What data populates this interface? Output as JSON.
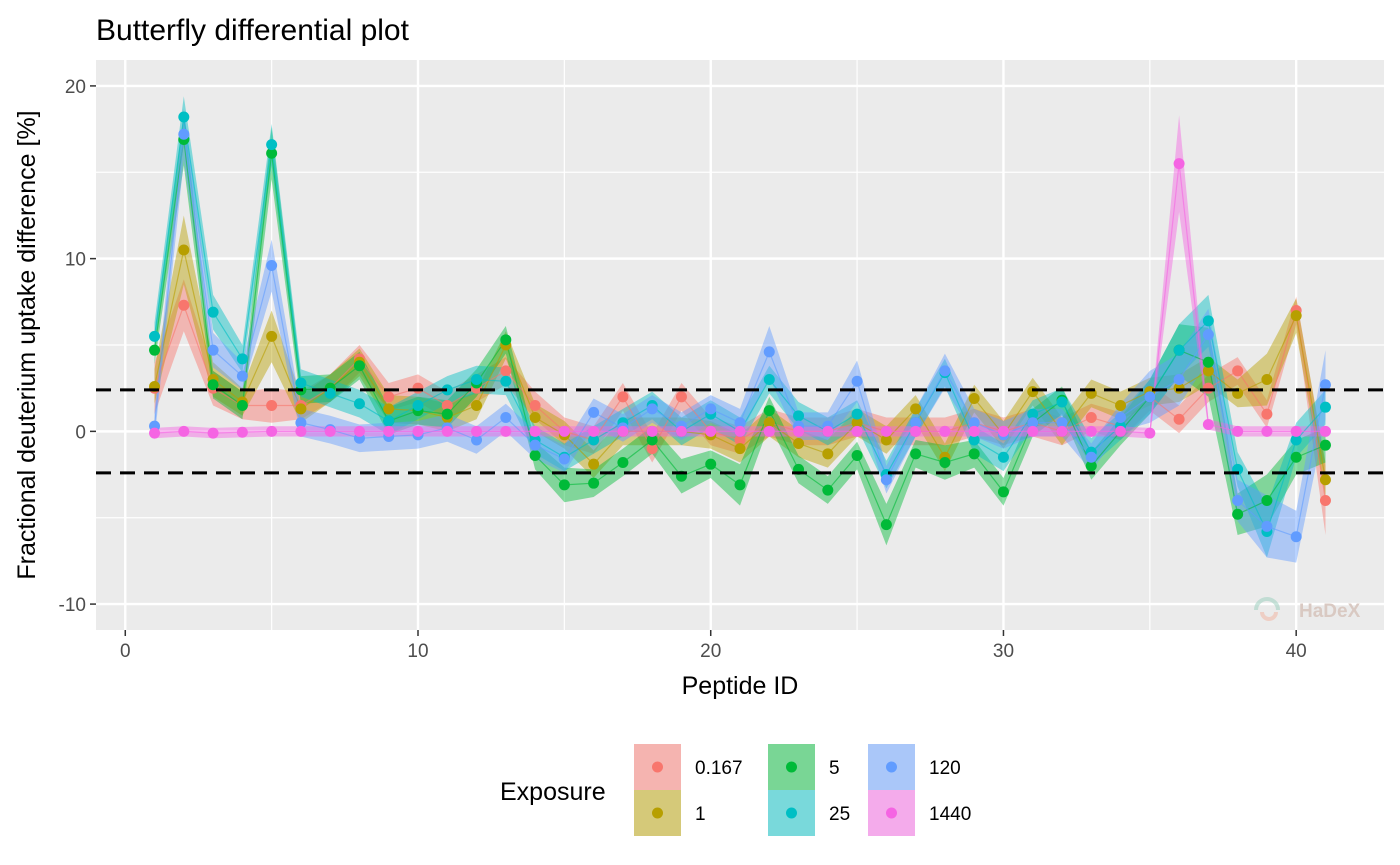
{
  "chart_data": {
    "type": "line",
    "title": "Butterfly differential plot",
    "xlabel": "Peptide ID",
    "ylabel": "Fractional deuterium uptake difference [%]",
    "xlim": [
      -1,
      43
    ],
    "ylim": [
      -11.5,
      21.5
    ],
    "x_ticks": [
      0,
      10,
      20,
      30,
      40
    ],
    "y_ticks": [
      -10,
      0,
      10,
      20
    ],
    "x_tick_labels": [
      "0",
      "10",
      "20",
      "30",
      "40"
    ],
    "y_tick_labels": [
      "-10",
      "0",
      "10",
      "20"
    ],
    "grid": true,
    "threshold_lines": [
      2.4,
      -2.4
    ],
    "legend": {
      "title": "Exposure",
      "position": "bottom"
    },
    "watermark": "HaDeX",
    "x": [
      1,
      2,
      3,
      4,
      5,
      6,
      7,
      8,
      9,
      10,
      11,
      12,
      13,
      14,
      15,
      16,
      17,
      18,
      19,
      20,
      21,
      22,
      23,
      24,
      25,
      26,
      27,
      28,
      29,
      30,
      31,
      32,
      33,
      34,
      35,
      36,
      37,
      38,
      39,
      40,
      41
    ],
    "series": [
      {
        "name": "0.167",
        "color": "#f8766d",
        "values": [
          2.5,
          7.3,
          2.5,
          1.5,
          1.5,
          1.5,
          2.5,
          4.2,
          2.0,
          2.5,
          1.5,
          2.5,
          3.5,
          1.5,
          0.0,
          -0.5,
          2.0,
          -1.0,
          2.0,
          0.0,
          -0.5,
          0.5,
          0.0,
          0.0,
          0.5,
          0.0,
          0.0,
          0.0,
          0.5,
          0.0,
          0.5,
          0.0,
          0.8,
          0.3,
          2.0,
          0.7,
          2.5,
          3.5,
          1.0,
          7.0,
          -4.0
        ],
        "error": [
          1.5,
          1.5,
          1.0,
          0.8,
          1.0,
          0.8,
          0.8,
          0.8,
          0.8,
          0.8,
          0.8,
          0.8,
          0.8,
          0.8,
          0.8,
          0.8,
          0.8,
          0.8,
          0.8,
          0.8,
          0.8,
          0.8,
          0.8,
          0.8,
          0.8,
          0.8,
          0.8,
          0.8,
          0.8,
          0.8,
          0.8,
          0.8,
          0.8,
          0.8,
          0.8,
          0.8,
          0.8,
          0.8,
          0.8,
          0.8,
          2.0
        ]
      },
      {
        "name": "1",
        "color": "#b79f00",
        "values": [
          2.6,
          10.5,
          3.0,
          1.7,
          5.5,
          1.3,
          2.5,
          4.0,
          1.3,
          1.2,
          0.8,
          1.5,
          5.0,
          0.8,
          -0.2,
          -1.9,
          0.0,
          0.0,
          0.0,
          -0.2,
          -1.0,
          0.5,
          -0.7,
          -1.3,
          0.5,
          -0.5,
          1.3,
          -1.5,
          1.9,
          -0.2,
          2.3,
          0.0,
          2.2,
          1.5,
          2.3,
          2.5,
          3.5,
          2.2,
          3.0,
          6.7,
          -2.8
        ],
        "error": [
          1.0,
          2.0,
          1.0,
          0.8,
          1.5,
          0.8,
          0.8,
          0.8,
          0.8,
          0.8,
          0.8,
          0.8,
          0.8,
          0.8,
          0.8,
          0.8,
          0.8,
          0.8,
          0.8,
          0.8,
          0.8,
          0.8,
          0.8,
          0.8,
          0.8,
          0.8,
          0.8,
          0.8,
          0.8,
          0.8,
          0.8,
          0.8,
          0.8,
          0.8,
          0.8,
          0.8,
          0.8,
          0.8,
          1.5,
          1.0,
          1.0
        ]
      },
      {
        "name": "5",
        "color": "#00ba38",
        "values": [
          4.7,
          16.9,
          2.7,
          1.5,
          16.1,
          2.4,
          2.5,
          3.8,
          0.6,
          1.2,
          1.0,
          2.8,
          5.3,
          -1.4,
          -3.1,
          -3.0,
          -1.8,
          -0.5,
          -2.6,
          -1.9,
          -3.1,
          1.2,
          -2.2,
          -3.4,
          -1.4,
          -5.4,
          -1.3,
          -1.8,
          -1.3,
          -3.5,
          0.5,
          1.8,
          -2.0,
          0.0,
          2.0,
          4.7,
          4.0,
          -4.8,
          -4.0,
          -1.5,
          -0.8
        ],
        "error": [
          0.8,
          1.5,
          0.8,
          0.8,
          1.5,
          0.8,
          0.8,
          0.8,
          0.8,
          0.8,
          0.8,
          0.8,
          0.8,
          0.8,
          1.0,
          0.8,
          0.8,
          0.8,
          1.0,
          0.8,
          1.2,
          0.8,
          0.8,
          0.8,
          0.8,
          1.2,
          0.8,
          1.0,
          0.8,
          0.8,
          0.8,
          0.8,
          0.8,
          0.8,
          1.0,
          1.5,
          2.0,
          1.2,
          1.5,
          1.0,
          1.0
        ]
      },
      {
        "name": "25",
        "color": "#00bfc4",
        "values": [
          5.5,
          18.2,
          6.9,
          4.2,
          16.6,
          2.8,
          2.2,
          1.6,
          0.6,
          1.5,
          2.4,
          3.0,
          2.9,
          -0.5,
          -1.5,
          -0.5,
          0.5,
          1.5,
          0.0,
          1.0,
          0.0,
          3.0,
          0.9,
          0.0,
          1.0,
          -2.5,
          0.5,
          3.4,
          -0.5,
          -1.5,
          1.0,
          1.7,
          -1.2,
          0.3,
          2.0,
          4.7,
          6.4,
          -2.2,
          -5.8,
          -0.5,
          1.4
        ],
        "error": [
          0.8,
          1.2,
          1.0,
          0.8,
          1.2,
          0.8,
          0.8,
          0.8,
          0.8,
          0.8,
          0.8,
          0.8,
          0.8,
          0.8,
          0.8,
          0.8,
          0.8,
          0.8,
          0.8,
          0.8,
          0.8,
          0.8,
          0.8,
          0.8,
          0.8,
          0.8,
          0.8,
          0.8,
          0.8,
          0.8,
          0.8,
          0.8,
          0.8,
          0.8,
          1.0,
          1.5,
          1.5,
          1.0,
          1.5,
          1.0,
          1.0
        ]
      },
      {
        "name": "120",
        "color": "#619cff",
        "values": [
          0.3,
          17.2,
          4.7,
          3.2,
          9.6,
          0.5,
          0.1,
          -0.4,
          -0.3,
          -0.2,
          0.2,
          -0.5,
          0.8,
          -0.8,
          -1.6,
          1.1,
          0.2,
          1.3,
          0.3,
          1.3,
          0.5,
          4.6,
          0.3,
          0.3,
          2.9,
          -2.8,
          0.5,
          3.5,
          0.5,
          -0.2,
          0.5,
          0.5,
          -1.5,
          0.8,
          2.0,
          3.0,
          5.6,
          -4.0,
          -5.5,
          -6.1,
          2.7
        ],
        "error": [
          0.8,
          1.5,
          1.0,
          0.8,
          1.5,
          0.8,
          0.8,
          0.8,
          0.8,
          0.8,
          0.8,
          0.8,
          0.8,
          0.8,
          0.8,
          0.8,
          0.8,
          0.8,
          0.8,
          0.8,
          0.8,
          1.5,
          0.8,
          0.8,
          1.2,
          0.8,
          0.8,
          1.0,
          0.8,
          0.8,
          0.8,
          0.8,
          0.8,
          0.8,
          1.5,
          1.5,
          1.5,
          1.2,
          1.8,
          1.5,
          2.0
        ]
      },
      {
        "name": "1440",
        "color": "#f564e3",
        "values": [
          -0.1,
          0.0,
          -0.1,
          -0.05,
          0.0,
          0.0,
          0.0,
          0.0,
          0.0,
          0.0,
          0.0,
          0.0,
          0.0,
          0.0,
          0.0,
          0.0,
          0.0,
          0.0,
          0.0,
          0.0,
          0.0,
          0.0,
          0.0,
          0.0,
          0.0,
          0.0,
          0.0,
          0.0,
          0.0,
          0.0,
          0.0,
          0.0,
          0.0,
          0.0,
          -0.1,
          15.5,
          0.4,
          0.0,
          0.0,
          0.0,
          0.0
        ],
        "error": [
          0.3,
          0.3,
          0.3,
          0.3,
          0.3,
          0.3,
          0.3,
          0.3,
          0.3,
          0.3,
          0.3,
          0.3,
          0.3,
          0.3,
          0.3,
          0.3,
          0.3,
          0.3,
          0.3,
          0.3,
          0.3,
          0.3,
          0.3,
          0.3,
          0.3,
          0.3,
          0.3,
          0.3,
          0.3,
          0.3,
          0.3,
          0.3,
          0.3,
          0.3,
          0.3,
          2.8,
          0.3,
          0.3,
          0.3,
          0.3,
          0.3
        ]
      }
    ]
  }
}
